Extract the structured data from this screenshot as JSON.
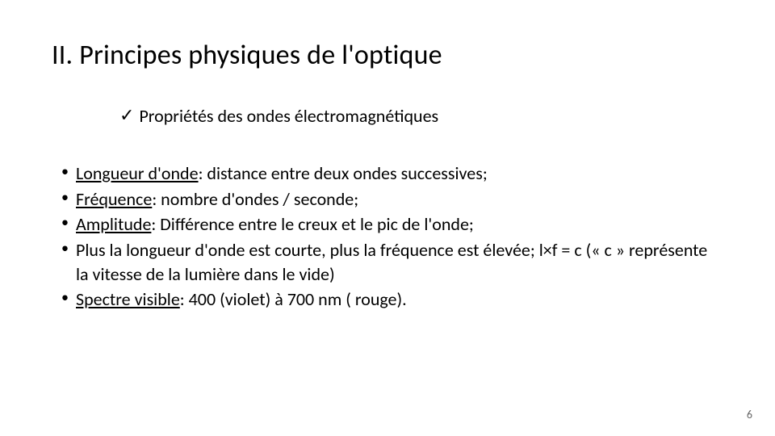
{
  "title": "II. Principes physiques de l'optique",
  "subtitle": "Propriétés des ondes électromagnétiques",
  "checkmark": "✓",
  "bullets": {
    "b0": {
      "term": "Longueur d'onde",
      "rest": ": distance entre deux ondes successives;"
    },
    "b1": {
      "term": "Fréquence",
      "rest": ": nombre d'ondes / seconde;"
    },
    "b2": {
      "term": "Amplitude",
      "rest": ": Différence entre le creux et le pic de l'onde;"
    },
    "b3": {
      "text": "Plus la longueur d'onde est courte, plus la fréquence est élevée; l×f = c (« c » représente la vitesse de la lumière dans le vide)"
    },
    "b4": {
      "term": "Spectre visible",
      "rest": ": 400 (violet) à 700 nm ( rouge)."
    }
  },
  "page_number": "6",
  "colors": {
    "text": "#000000",
    "background": "#ffffff",
    "page_number": "#666666"
  },
  "fontsizes": {
    "title": 34,
    "subtitle": 22,
    "bullet": 22,
    "page_number": 14
  }
}
